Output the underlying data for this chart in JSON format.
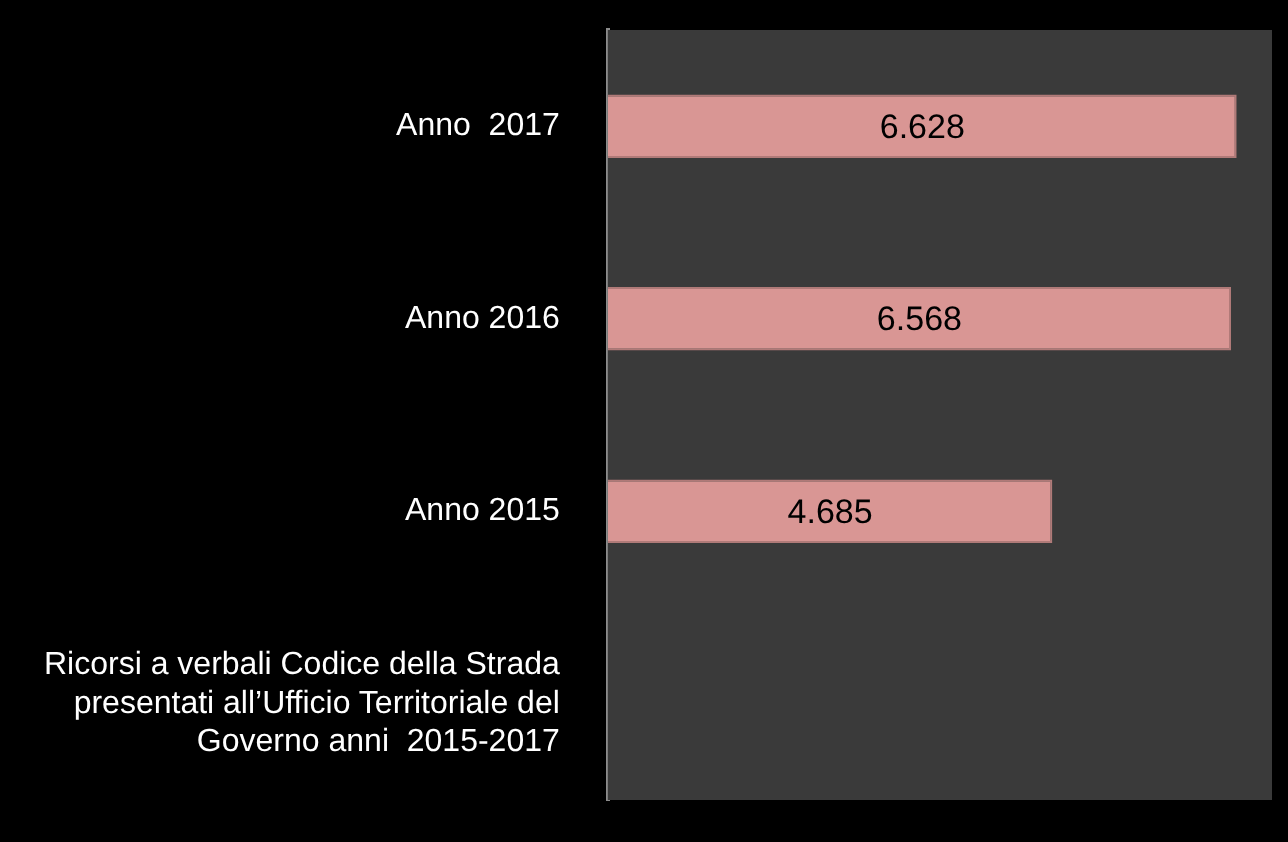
{
  "chart_data": {
    "type": "bar",
    "orientation": "horizontal",
    "categories": [
      "Anno  2017",
      "Anno 2016",
      "Anno 2015",
      "Ricorsi a verbali Codice della Strada presentati all’Ufficio Territoriale del Governo anni  2015-2017"
    ],
    "values": [
      6628,
      6568,
      4685,
      null
    ],
    "value_labels": [
      "6.628",
      "6.568",
      "4.685",
      null
    ],
    "color": "#d99694",
    "grid": false,
    "legend": false
  }
}
